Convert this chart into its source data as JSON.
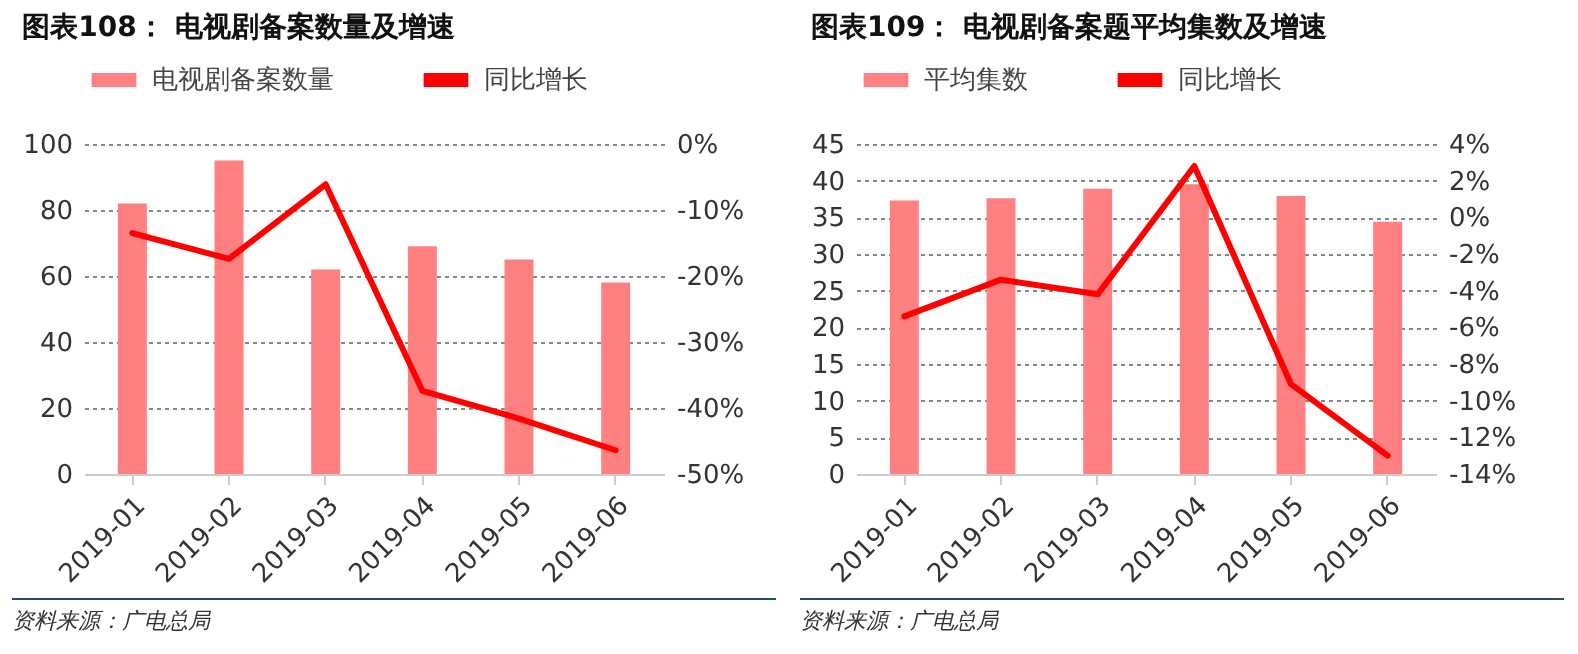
{
  "chart_data": [
    {
      "type": "bar",
      "title": "图表108：  电视剧备案数量及增速",
      "categories": [
        "2019-01",
        "2019-02",
        "2019-03",
        "2019-04",
        "2019-05",
        "2019-06"
      ],
      "series": [
        {
          "name": "电视剧备案数量",
          "type": "bar",
          "color": "#ff8080",
          "values": [
            82,
            95,
            62,
            69,
            65,
            58
          ]
        },
        {
          "name": "同比增长",
          "type": "line",
          "axis": "y2",
          "color": "#ff0000",
          "values": [
            -13.5,
            -17.4,
            -6.1,
            -37.4,
            -41.6,
            -46.4
          ]
        }
      ],
      "ylim": [
        0,
        100
      ],
      "yticks": [
        0,
        20,
        40,
        60,
        80,
        100
      ],
      "y2lim": [
        -50,
        0
      ],
      "y2ticks": [
        {
          "value": -50,
          "label": "-50%"
        },
        {
          "value": -40,
          "label": "-40%"
        },
        {
          "value": -30,
          "label": "-30%"
        },
        {
          "value": -20,
          "label": "-20%"
        },
        {
          "value": -10,
          "label": "-10%"
        },
        {
          "value": 0,
          "label": "0%"
        }
      ],
      "grid": "y",
      "legend": "top",
      "annotations": [
        "资料来源：广电总局"
      ]
    },
    {
      "type": "bar",
      "title": "图表109：  电视剧备案题平均集数及增速",
      "categories": [
        "2019-01",
        "2019-02",
        "2019-03",
        "2019-04",
        "2019-05",
        "2019-06"
      ],
      "series": [
        {
          "name": "平均集数",
          "type": "bar",
          "color": "#ff8080",
          "values": [
            37.3,
            37.6,
            38.9,
            39.5,
            37.9,
            34.4
          ]
        },
        {
          "name": "同比增长",
          "type": "line",
          "axis": "y2",
          "color": "#ff0000",
          "values": [
            -5.4,
            -3.4,
            -4.2,
            2.8,
            -9.1,
            -13.0
          ]
        }
      ],
      "ylim": [
        0,
        45
      ],
      "yticks": [
        0,
        5,
        10,
        15,
        20,
        25,
        30,
        35,
        40,
        45
      ],
      "y2lim": [
        -14,
        4
      ],
      "y2ticks": [
        {
          "value": -14,
          "label": "-14%"
        },
        {
          "value": -12,
          "label": "-12%"
        },
        {
          "value": -10,
          "label": "-10%"
        },
        {
          "value": -8,
          "label": "-8%"
        },
        {
          "value": -6,
          "label": "-6%"
        },
        {
          "value": -4,
          "label": "-4%"
        },
        {
          "value": -2,
          "label": "-2%"
        },
        {
          "value": 0,
          "label": "0%"
        },
        {
          "value": 2,
          "label": "2%"
        },
        {
          "value": 4,
          "label": "4%"
        }
      ],
      "grid": "y",
      "legend": "top",
      "annotations": [
        "资料来源：广电总局"
      ]
    }
  ]
}
